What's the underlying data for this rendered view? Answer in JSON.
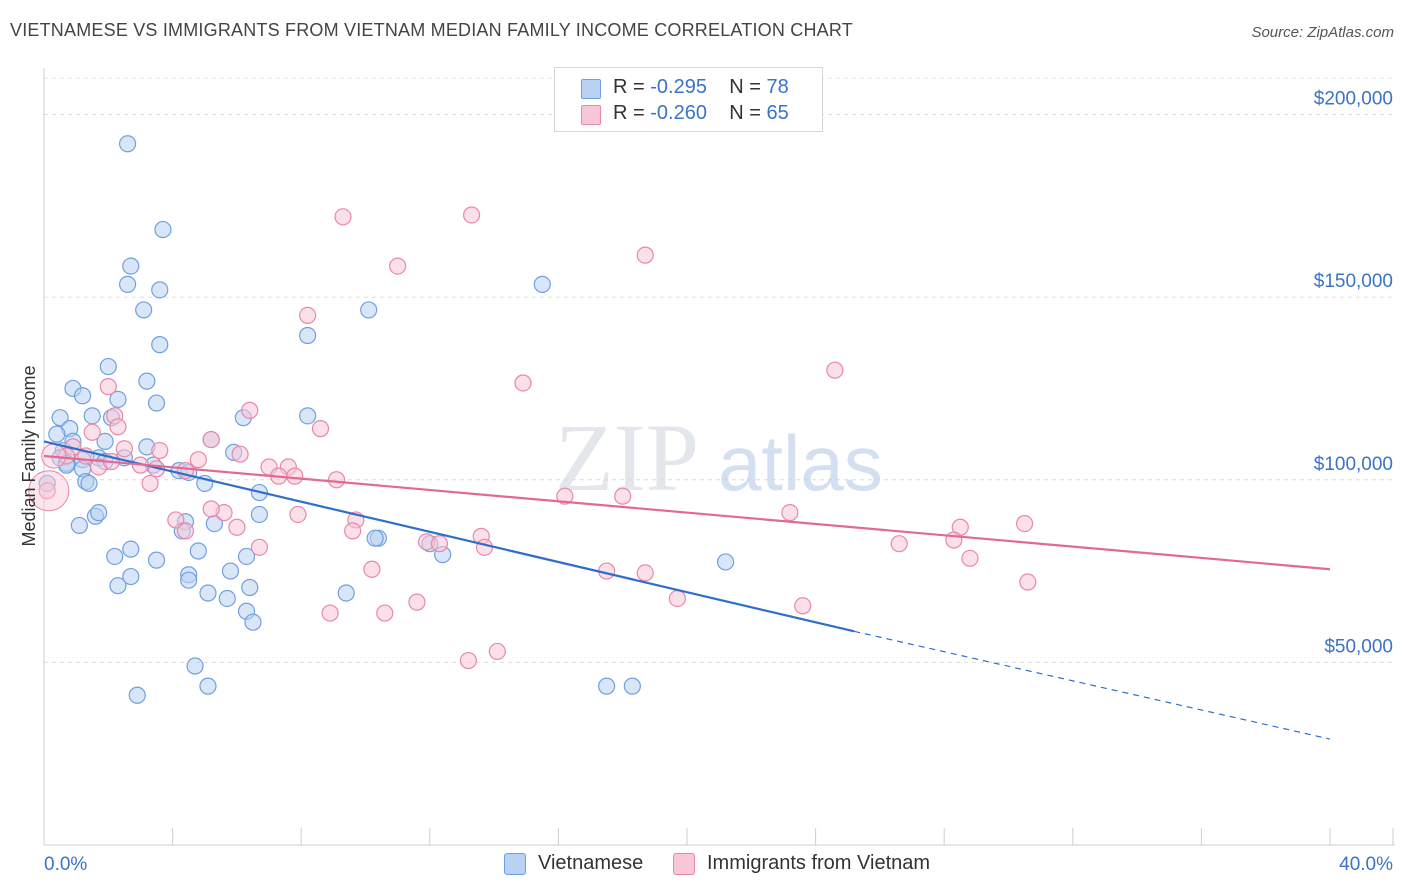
{
  "title": "VIETNAMESE VS IMMIGRANTS FROM VIETNAM MEDIAN FAMILY INCOME CORRELATION CHART",
  "source": "Source: ZipAtlas.com",
  "watermark": {
    "zip": "ZIP",
    "atlas": "atlas"
  },
  "stats": [
    {
      "r_label": "R =",
      "r_value": "-0.295",
      "n_label": "N =",
      "n_value": "78",
      "color": "#6fa0e0",
      "fill": "#b9d2f3"
    },
    {
      "r_label": "R =",
      "r_value": "-0.260",
      "n_label": "N =",
      "n_value": "65",
      "color": "#e888a8",
      "fill": "#f8c7d7"
    }
  ],
  "legend": {
    "series1": "Vietnamese",
    "series2": "Immigrants from Vietnam"
  },
  "chart_data": {
    "type": "scatter",
    "ylabel": "Median Family Income",
    "xlabel": "",
    "x_tick_labels": {
      "min": "0.0%",
      "max": "40.0%"
    },
    "xlim": [
      0,
      40
    ],
    "ylim": [
      0,
      210000
    ],
    "y_ticks": [
      {
        "value": 50000,
        "label": "$50,000"
      },
      {
        "value": 100000,
        "label": "$100,000"
      },
      {
        "value": 150000,
        "label": "$150,000"
      },
      {
        "value": 200000,
        "label": "$200,000"
      }
    ],
    "grid": true,
    "series": [
      {
        "name": "Vietnamese",
        "color": "#6fa0e0",
        "fill": "#b9d2f3",
        "line_color": "#2f6fcc",
        "trend": {
          "x0": 0,
          "y0": 110500,
          "x1": 25.2,
          "y1": 58500,
          "dash_to_x": 40,
          "dash_to_y": 29000
        },
        "points": [
          [
            2.6,
            192000
          ],
          [
            3.7,
            168500
          ],
          [
            2.7,
            158500
          ],
          [
            2.6,
            153500
          ],
          [
            3.6,
            152000
          ],
          [
            3.1,
            146500
          ],
          [
            15.5,
            153500
          ],
          [
            10.1,
            146500
          ],
          [
            8.2,
            139500
          ],
          [
            3.6,
            137000
          ],
          [
            2.0,
            131000
          ],
          [
            3.2,
            127000
          ],
          [
            0.9,
            125000
          ],
          [
            1.2,
            123000
          ],
          [
            2.3,
            122000
          ],
          [
            3.5,
            121000
          ],
          [
            8.2,
            117500
          ],
          [
            6.2,
            117000
          ],
          [
            1.5,
            117500
          ],
          [
            2.1,
            117000
          ],
          [
            0.5,
            117000
          ],
          [
            5.2,
            111000
          ],
          [
            0.8,
            114000
          ],
          [
            0.9,
            110500
          ],
          [
            1.9,
            110500
          ],
          [
            0.4,
            112500
          ],
          [
            3.2,
            109000
          ],
          [
            0.6,
            108000
          ],
          [
            0.5,
            106000
          ],
          [
            1.2,
            105500
          ],
          [
            2.5,
            106000
          ],
          [
            1.7,
            106000
          ],
          [
            1.9,
            105000
          ],
          [
            3.4,
            104000
          ],
          [
            5.9,
            107500
          ],
          [
            0.7,
            104500
          ],
          [
            1.2,
            103000
          ],
          [
            4.2,
            102500
          ],
          [
            4.5,
            102000
          ],
          [
            1.3,
            99500
          ],
          [
            1.4,
            99000
          ],
          [
            5.0,
            99000
          ],
          [
            6.7,
            96500
          ],
          [
            1.6,
            90000
          ],
          [
            1.7,
            91000
          ],
          [
            6.7,
            90500
          ],
          [
            4.4,
            88500
          ],
          [
            1.1,
            87500
          ],
          [
            5.3,
            88000
          ],
          [
            4.3,
            86000
          ],
          [
            10.4,
            84000
          ],
          [
            10.3,
            84000
          ],
          [
            12.0,
            82500
          ],
          [
            2.7,
            81000
          ],
          [
            4.8,
            80500
          ],
          [
            2.2,
            79000
          ],
          [
            3.5,
            78000
          ],
          [
            6.3,
            79000
          ],
          [
            12.4,
            79500
          ],
          [
            21.2,
            77500
          ],
          [
            4.5,
            74000
          ],
          [
            5.8,
            75000
          ],
          [
            2.7,
            73500
          ],
          [
            4.5,
            72500
          ],
          [
            2.3,
            71000
          ],
          [
            6.4,
            70500
          ],
          [
            5.1,
            69000
          ],
          [
            9.4,
            69000
          ],
          [
            5.7,
            67500
          ],
          [
            6.3,
            64000
          ],
          [
            6.5,
            61000
          ],
          [
            4.7,
            49000
          ],
          [
            5.1,
            43500
          ],
          [
            2.9,
            41000
          ],
          [
            17.5,
            43500
          ],
          [
            18.3,
            43500
          ],
          [
            0.7,
            104000
          ],
          [
            0.1,
            99000
          ]
        ]
      },
      {
        "name": "Immigrants from Vietnam",
        "color": "#e888a8",
        "fill": "#f8c7d7",
        "line_color": "#e06a95",
        "trend": {
          "x0": 0,
          "y0": 106500,
          "x1": 40,
          "y1": 75500
        },
        "points": [
          [
            13.3,
            172500
          ],
          [
            9.3,
            172000
          ],
          [
            18.7,
            161500
          ],
          [
            11.0,
            158500
          ],
          [
            8.2,
            145000
          ],
          [
            24.6,
            130000
          ],
          [
            14.9,
            126500
          ],
          [
            2.0,
            125500
          ],
          [
            6.4,
            119000
          ],
          [
            2.2,
            117500
          ],
          [
            8.6,
            114000
          ],
          [
            2.3,
            114500
          ],
          [
            1.5,
            113000
          ],
          [
            5.2,
            111000
          ],
          [
            0.9,
            109000
          ],
          [
            2.5,
            108500
          ],
          [
            3.6,
            108000
          ],
          [
            1.3,
            106500
          ],
          [
            0.7,
            106500
          ],
          [
            4.8,
            105500
          ],
          [
            6.1,
            107000
          ],
          [
            7.0,
            103500
          ],
          [
            7.6,
            103500
          ],
          [
            3.5,
            103000
          ],
          [
            7.3,
            101000
          ],
          [
            7.8,
            101000
          ],
          [
            4.4,
            102500
          ],
          [
            3.3,
            99000
          ],
          [
            9.1,
            100000
          ],
          [
            16.2,
            95500
          ],
          [
            18.0,
            95500
          ],
          [
            5.6,
            91000
          ],
          [
            5.2,
            92000
          ],
          [
            23.2,
            91000
          ],
          [
            7.9,
            90500
          ],
          [
            4.1,
            89000
          ],
          [
            9.7,
            89000
          ],
          [
            4.4,
            86000
          ],
          [
            6.0,
            87000
          ],
          [
            9.6,
            86000
          ],
          [
            28.5,
            87000
          ],
          [
            30.5,
            88000
          ],
          [
            13.6,
            84500
          ],
          [
            11.9,
            83000
          ],
          [
            12.3,
            82500
          ],
          [
            13.7,
            81500
          ],
          [
            26.6,
            82500
          ],
          [
            28.3,
            83500
          ],
          [
            6.7,
            81500
          ],
          [
            10.2,
            75500
          ],
          [
            17.5,
            75000
          ],
          [
            18.7,
            74500
          ],
          [
            28.8,
            78500
          ],
          [
            30.6,
            72000
          ],
          [
            19.7,
            67500
          ],
          [
            23.6,
            65500
          ],
          [
            11.6,
            66500
          ],
          [
            8.9,
            63500
          ],
          [
            10.6,
            63500
          ],
          [
            14.1,
            53000
          ],
          [
            13.2,
            50500
          ],
          [
            0.1,
            97000
          ],
          [
            1.7,
            103500
          ],
          [
            2.1,
            105000
          ],
          [
            3.0,
            104000
          ]
        ]
      }
    ]
  }
}
